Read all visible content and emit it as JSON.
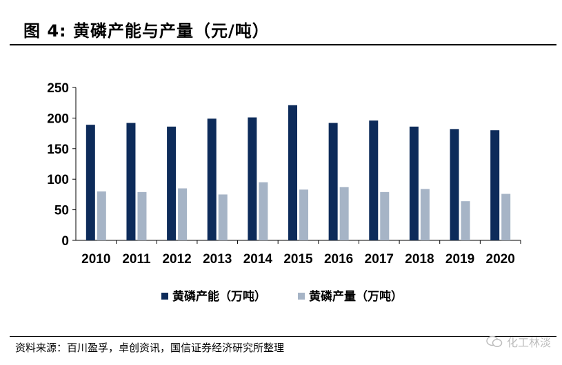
{
  "header": {
    "title": "图 4:  黄磷产能与产量（元/吨）"
  },
  "footer": {
    "source": "资料来源：百川盈孚，卓创资讯，国信证券经济研究所整理",
    "watermark": "化工林淡"
  },
  "chart_data": {
    "type": "bar",
    "categories": [
      "2010",
      "2011",
      "2012",
      "2013",
      "2014",
      "2015",
      "2016",
      "2017",
      "2018",
      "2019",
      "2020"
    ],
    "series": [
      {
        "name": "黄磷产能（万吨）",
        "values": [
          189,
          192,
          186,
          199,
          201,
          221,
          192,
          196,
          186,
          182,
          180
        ],
        "color": "#0d2b5a"
      },
      {
        "name": "黄磷产量（万吨）",
        "values": [
          80,
          79,
          85,
          75,
          95,
          83,
          87,
          79,
          84,
          64,
          76
        ],
        "color": "#a6b4c6"
      }
    ],
    "yticks": [
      "0",
      "50",
      "100",
      "150",
      "200",
      "250"
    ],
    "ylim": [
      0,
      250
    ],
    "grid": false,
    "legend": "bottom"
  }
}
